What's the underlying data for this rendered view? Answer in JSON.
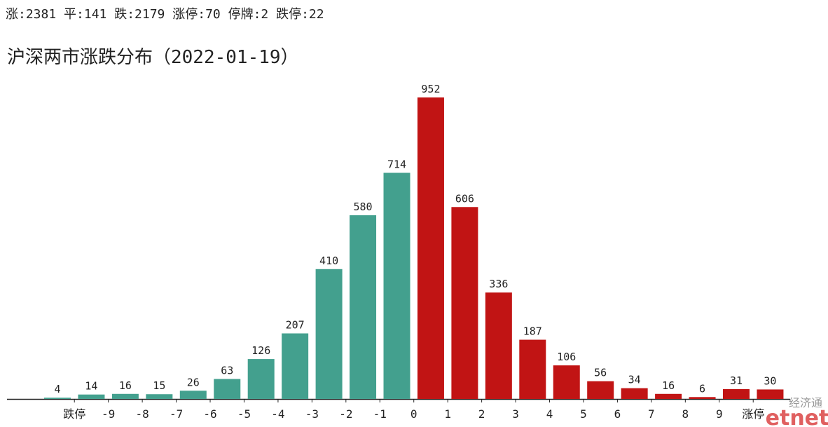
{
  "chart_data": {
    "type": "bar",
    "summary": "涨:2381 平:141 跌:2179 涨停:70 停牌:2 跌停:22",
    "title": "沪深两市涨跌分布（2022-01-19）",
    "categories": [
      null,
      null,
      null,
      null,
      null,
      null,
      null,
      null,
      null,
      null,
      null,
      null,
      null,
      null,
      null,
      null,
      null,
      null,
      null,
      null,
      null,
      null
    ],
    "x_labels": [
      "跌停",
      "-9",
      "-8",
      "-7",
      "-6",
      "-5",
      "-4",
      "-3",
      "-2",
      "-1",
      "0",
      "1",
      "2",
      "3",
      "4",
      "5",
      "6",
      "7",
      "8",
      "9",
      "涨停"
    ],
    "values": [
      4,
      14,
      16,
      15,
      26,
      63,
      126,
      207,
      410,
      580,
      714,
      952,
      606,
      336,
      187,
      106,
      56,
      34,
      16,
      6,
      31,
      30
    ],
    "colors": [
      "#43a08e",
      "#43a08e",
      "#43a08e",
      "#43a08e",
      "#43a08e",
      "#43a08e",
      "#43a08e",
      "#43a08e",
      "#43a08e",
      "#43a08e",
      "#43a08e",
      "#c11414",
      "#c11414",
      "#c11414",
      "#c11414",
      "#c11414",
      "#c11414",
      "#c11414",
      "#c11414",
      "#c11414",
      "#c11414",
      "#c11414"
    ],
    "ylim": [
      0,
      1000
    ],
    "watermark": {
      "cn": "经济通",
      "en": "etnet"
    }
  }
}
